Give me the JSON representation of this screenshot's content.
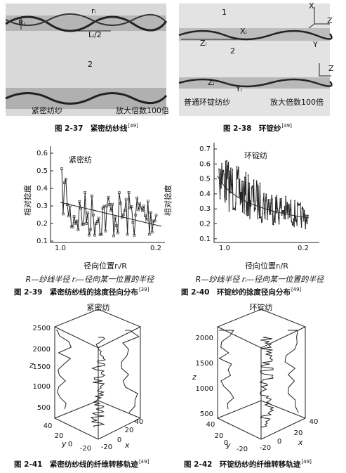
{
  "fig_2_37": {
    "labels": [
      "rᵢ",
      "Rᵢ",
      "Lᵢ/2",
      "2",
      "紧密纺纱",
      "放大倍数100倍"
    ],
    "caption": "图 2-37　紧密纺纱线",
    "ref": "[49]"
  },
  "fig_2_38": {
    "labels": [
      "1",
      "X",
      "Z",
      "Xᵢ",
      "Zᵢ",
      "2",
      "Y",
      "Z",
      "Zᵢ",
      "Yᵢ",
      "普通环锭纺纱",
      "放大倍数100倍"
    ],
    "caption": "图 2-38　环锭纱",
    "ref": "[49]"
  },
  "fig_2_39": {
    "title": "紧密纺",
    "y_label": "相对捻度",
    "yticks": [
      "0.6",
      "0.5",
      "0.4",
      "0.3",
      "0.2",
      "0.1"
    ],
    "xticks": [
      "1.0",
      "0.2"
    ],
    "x_label": "径向位置rᵢ/R",
    "note": "R—纱线半径 rᵢ—径向某一位置的半径",
    "caption": "图 2-39　紧密纺纱线的捻度径向分布",
    "ref": "[39]"
  },
  "fig_2_40": {
    "title": "环锭纺",
    "y_label": "相对捻度",
    "yticks": [
      "0.7",
      "0.6",
      "0.5",
      "0.4",
      "0.3",
      "0.2",
      "0.1"
    ],
    "xticks": [
      "1.0",
      "0.2"
    ],
    "x_label": "径向位置rᵢ/R",
    "note": "R—纱线半径 rᵢ—径向某一位置的半径",
    "caption": "图 2-40　环锭纱的捻度径向分布",
    "ref": "[49]"
  },
  "fig_2_41": {
    "title": "紧密纺",
    "z_label": "z",
    "zticks": [
      "2500",
      "2000",
      "1500",
      "1000",
      "500"
    ],
    "y_label": "y",
    "yticks": [
      "40",
      "20",
      "0",
      "-20"
    ],
    "x_label": "x",
    "xticks": [
      "-20",
      "0",
      "20",
      "40"
    ],
    "caption": "图 2-41　紧密纺纱线的纤维转移轨迹",
    "ref": "[49]"
  },
  "fig_2_42": {
    "title": "环锭纺",
    "z_label": "z",
    "zticks": [
      "2000",
      "1500",
      "1000",
      "500"
    ],
    "y_label": "y",
    "yticks": [
      "40",
      "20",
      "0",
      "-20"
    ],
    "x_label": "x",
    "xticks": [
      "-20",
      "0",
      "20",
      "40"
    ],
    "caption": "图 2-42　环锭纺纱的纤维转移轨迹",
    "ref": "[49]"
  }
}
